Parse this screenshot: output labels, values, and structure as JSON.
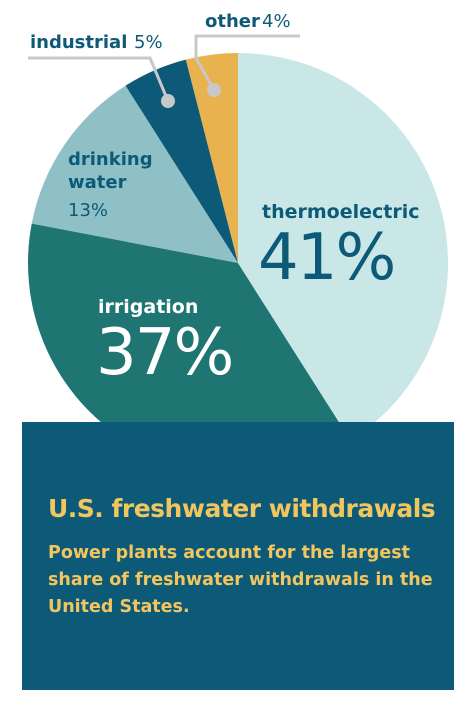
{
  "chart_data": {
    "type": "pie",
    "title": "U.S. freshwater withdrawals",
    "subtitle": "Power plants account for the largest share of freshwater withdrawals in the United States.",
    "categories": [
      "thermoelectric",
      "irrigation",
      "drinking water",
      "industrial",
      "other"
    ],
    "values": [
      41,
      37,
      13,
      5,
      4
    ],
    "value_labels": [
      "41%",
      "37%",
      "13%",
      "5%",
      "4%"
    ],
    "colors": [
      "#c9e7e6",
      "#1e7572",
      "#8fc0c5",
      "#0d5a78",
      "#e8b24e"
    ]
  }
}
